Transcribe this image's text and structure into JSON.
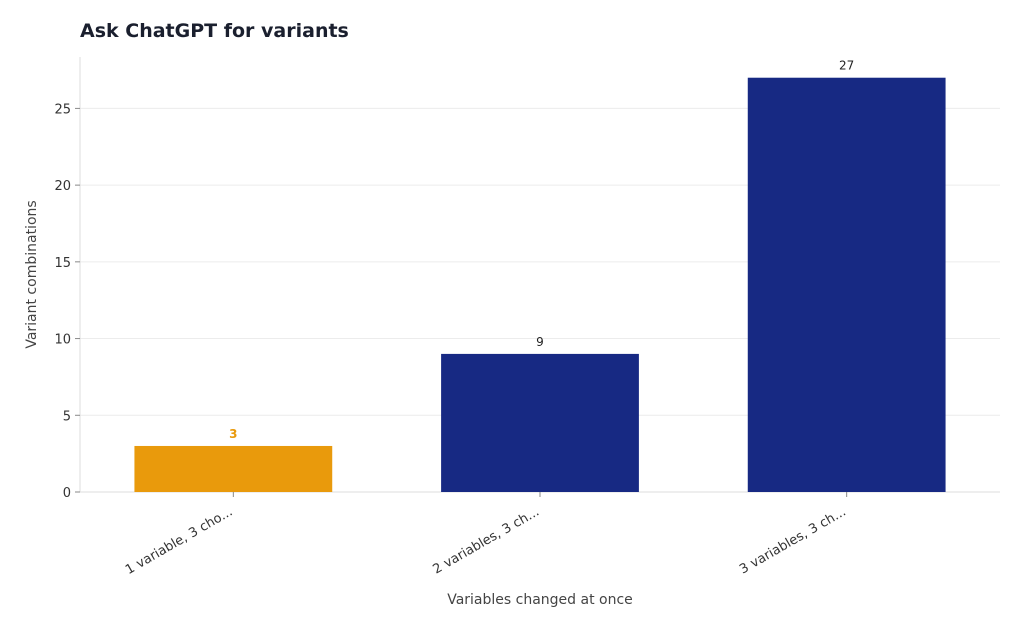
{
  "chart_data": {
    "type": "bar",
    "title": "Ask ChatGPT for variants",
    "xlabel": "Variables changed at once",
    "ylabel": "Variant combinations",
    "categories": [
      "1 variable, 3 cho...",
      "2 variables, 3 ch...",
      "3 variables, 3 ch..."
    ],
    "values": [
      3,
      9,
      27
    ],
    "data_labels": [
      "3",
      "9",
      "27"
    ],
    "ylim": [
      0,
      28.35
    ],
    "yticks": [
      0,
      5,
      10,
      15,
      20,
      25
    ],
    "grid": true,
    "legend": "none",
    "colors": {
      "highlight": "#E99A0C",
      "bar": "#172983",
      "highlight_label": "#E99A0C",
      "label": "#222222",
      "grid": "#ececec",
      "axis": "#dddddd",
      "tick_text": "#333333",
      "axis_label": "#444444"
    },
    "highlight_index": 0
  }
}
